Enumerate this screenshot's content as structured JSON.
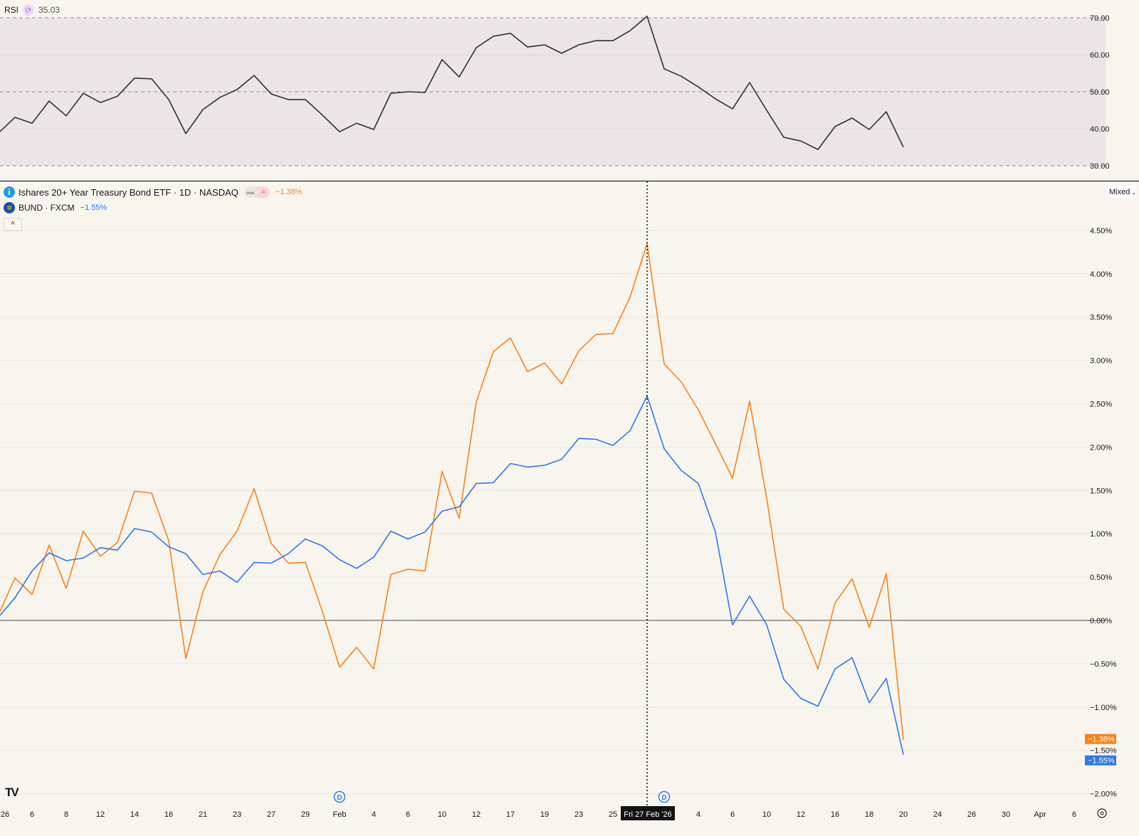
{
  "rsi": {
    "label": "RSI",
    "value": "35.03",
    "refresh_icon": "refresh-icon",
    "axis_labels": [
      "70.00",
      "60.00",
      "50.00",
      "40.00",
      "30.00"
    ]
  },
  "legend": {
    "primary": {
      "icon": "info-icon",
      "title": "Ishares 20+ Year Treasury Bond ETF · 1D · NASDAQ",
      "change": "−1.38%"
    },
    "secondary": {
      "icon": "eu-flag-icon",
      "title": "BUND · FXCM",
      "change": "−1.55%"
    },
    "collapse_icon": "chevron-up-icon"
  },
  "scale_mode": "Mixed",
  "crosshair_label": "Fri 27 Feb '26",
  "dividend_marker": "D",
  "price_labels": {
    "tlt": "−1.38%",
    "bund": "−1.55%",
    "hidden": "−1.50%"
  },
  "colors": {
    "tlt": "#f7821b",
    "bund": "#2f76f0",
    "rsi": "#2e2e38",
    "background": "#f8f5ee",
    "rsi_band": "#ebe5e8"
  },
  "chart_data": [
    {
      "type": "line",
      "title": "RSI",
      "ylim": [
        30,
        70
      ],
      "levels": [
        70,
        50,
        30
      ],
      "grid": true,
      "series": [
        {
          "name": "RSI",
          "values": [
            38.7,
            43.1,
            41.5,
            47.5,
            43.5,
            49.6,
            47.1,
            48.8,
            53.7,
            53.5,
            47.9,
            38.7,
            45.2,
            48.5,
            50.6,
            54.4,
            49.4,
            47.9,
            47.9,
            43.7,
            39.2,
            41.5,
            39.8,
            49.6,
            50.0,
            49.8,
            58.7,
            54.0,
            61.9,
            65.0,
            65.8,
            62.1,
            62.7,
            60.4,
            62.7,
            63.8,
            63.8,
            66.5,
            70.4,
            56.2,
            54.2,
            51.3,
            48.1,
            45.4,
            52.5,
            45.0,
            37.7,
            36.7,
            34.4,
            40.6,
            42.9,
            39.8,
            44.6,
            35.03
          ]
        }
      ]
    },
    {
      "type": "line",
      "ylabel": "",
      "yunit": "%",
      "ylim": [
        -2.0,
        4.5
      ],
      "grid": true,
      "y_ticks": [
        "4.50%",
        "4.00%",
        "3.50%",
        "3.00%",
        "2.50%",
        "2.00%",
        "1.50%",
        "1.00%",
        "0.50%",
        "0.00%",
        "−0.50%",
        "−1.00%",
        "−1.50%",
        "−2.00%"
      ],
      "x_ticks": [
        "26",
        "6",
        "8",
        "12",
        "14",
        "16",
        "21",
        "23",
        "27",
        "29",
        "Feb",
        "4",
        "6",
        "10",
        "12",
        "17",
        "19",
        "23",
        "25",
        "4",
        "6",
        "10",
        "12",
        "16",
        "18",
        "20",
        "24",
        "26",
        "30",
        "Apr",
        "6"
      ],
      "series": [
        {
          "name": "Ishares 20+ Year Treasury Bond ETF",
          "values": [
            0.05,
            0.49,
            0.3,
            0.87,
            0.37,
            1.03,
            0.74,
            0.9,
            1.49,
            1.47,
            0.92,
            -0.44,
            0.33,
            0.76,
            1.03,
            1.52,
            0.89,
            0.66,
            0.67,
            0.1,
            -0.54,
            -0.31,
            -0.56,
            0.53,
            0.59,
            0.57,
            1.72,
            1.18,
            2.52,
            3.1,
            3.26,
            2.87,
            2.97,
            2.73,
            3.11,
            3.3,
            3.31,
            3.73,
            4.35,
            2.96,
            2.75,
            2.43,
            2.04,
            1.64,
            2.53,
            1.41,
            0.13,
            -0.07,
            -0.56,
            0.2,
            0.48,
            -0.08,
            0.54,
            -1.38
          ]
        },
        {
          "name": "BUND",
          "values": [
            0.03,
            0.26,
            0.57,
            0.78,
            0.69,
            0.72,
            0.84,
            0.81,
            1.06,
            1.02,
            0.85,
            0.77,
            0.53,
            0.57,
            0.44,
            0.67,
            0.66,
            0.77,
            0.94,
            0.86,
            0.7,
            0.6,
            0.73,
            1.03,
            0.94,
            1.02,
            1.26,
            1.31,
            1.58,
            1.59,
            1.81,
            1.77,
            1.79,
            1.86,
            2.1,
            2.09,
            2.02,
            2.19,
            2.59,
            1.98,
            1.73,
            1.58,
            1.02,
            -0.05,
            0.28,
            -0.05,
            -0.68,
            -0.9,
            -0.99,
            -0.56,
            -0.43,
            -0.95,
            -0.67,
            -1.55
          ]
        }
      ]
    }
  ]
}
